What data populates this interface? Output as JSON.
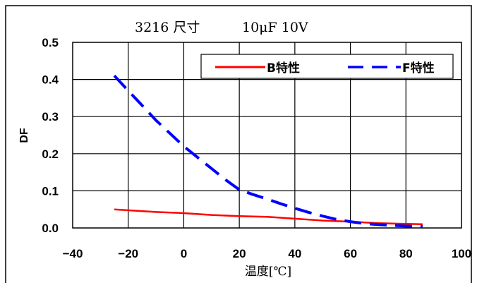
{
  "chart_data": {
    "type": "line",
    "title_part1": "3216 尺寸",
    "title_part2": "10μF  10V",
    "xlabel": "温度[℃]",
    "ylabel": "DF",
    "xlim": [
      -40,
      100
    ],
    "ylim": [
      0,
      0.5
    ],
    "xticks": [
      "−40",
      "−20",
      "0",
      "20",
      "40",
      "60",
      "80",
      "100"
    ],
    "yticks": [
      "0.0",
      "0.1",
      "0.2",
      "0.3",
      "0.4",
      "0.5"
    ],
    "grid": true,
    "legend_position": "top-right",
    "series": [
      {
        "name": "B特性",
        "color": "#ff0000",
        "style": "solid",
        "x": [
          -25,
          -10,
          0,
          10,
          20,
          30,
          40,
          50,
          60,
          70,
          80,
          86
        ],
        "y": [
          0.05,
          0.043,
          0.04,
          0.035,
          0.032,
          0.03,
          0.025,
          0.02,
          0.017,
          0.013,
          0.011,
          0.01
        ]
      },
      {
        "name": "F特性",
        "color": "#0000ff",
        "style": "dashed",
        "x": [
          -25,
          -20,
          -15,
          -10,
          -5,
          0,
          5,
          10,
          15,
          20,
          25,
          30,
          35,
          40,
          45,
          50,
          55,
          60,
          65,
          70,
          75,
          80,
          86
        ],
        "y": [
          0.41,
          0.37,
          0.33,
          0.29,
          0.255,
          0.22,
          0.19,
          0.16,
          0.13,
          0.103,
          0.09,
          0.078,
          0.065,
          0.053,
          0.042,
          0.032,
          0.023,
          0.017,
          0.012,
          0.009,
          0.007,
          0.005,
          0.004
        ]
      }
    ]
  }
}
